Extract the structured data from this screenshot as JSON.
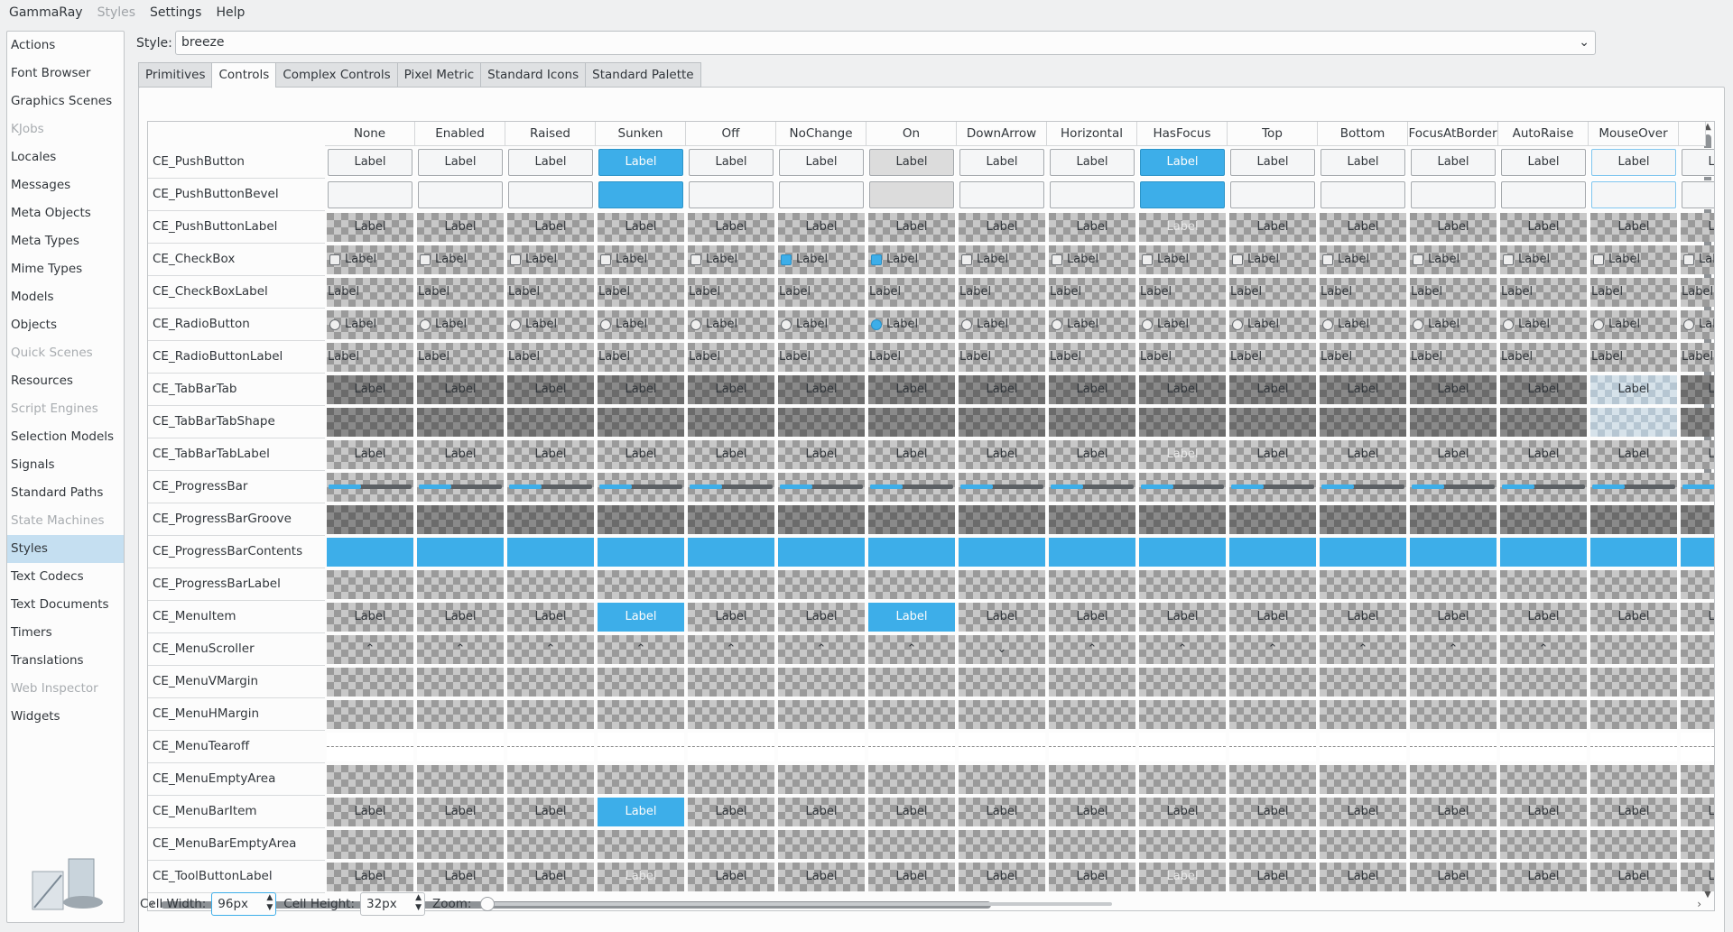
{
  "menubar": {
    "items": [
      {
        "label": "GammaRay",
        "disabled": false
      },
      {
        "label": "Styles",
        "disabled": true
      },
      {
        "label": "Settings",
        "disabled": false
      },
      {
        "label": "Help",
        "disabled": false
      }
    ]
  },
  "sidebar": {
    "items": [
      {
        "label": "Actions",
        "state": ""
      },
      {
        "label": "Font Browser",
        "state": ""
      },
      {
        "label": "Graphics Scenes",
        "state": ""
      },
      {
        "label": "KJobs",
        "state": "disabled"
      },
      {
        "label": "Locales",
        "state": ""
      },
      {
        "label": "Messages",
        "state": ""
      },
      {
        "label": "Meta Objects",
        "state": ""
      },
      {
        "label": "Meta Types",
        "state": ""
      },
      {
        "label": "Mime Types",
        "state": ""
      },
      {
        "label": "Models",
        "state": ""
      },
      {
        "label": "Objects",
        "state": ""
      },
      {
        "label": "Quick Scenes",
        "state": "disabled"
      },
      {
        "label": "Resources",
        "state": ""
      },
      {
        "label": "Script Engines",
        "state": "disabled"
      },
      {
        "label": "Selection Models",
        "state": ""
      },
      {
        "label": "Signals",
        "state": ""
      },
      {
        "label": "Standard Paths",
        "state": ""
      },
      {
        "label": "State Machines",
        "state": "disabled"
      },
      {
        "label": "Styles",
        "state": "selected"
      },
      {
        "label": "Text Codecs",
        "state": ""
      },
      {
        "label": "Text Documents",
        "state": ""
      },
      {
        "label": "Timers",
        "state": ""
      },
      {
        "label": "Translations",
        "state": ""
      },
      {
        "label": "Web Inspector",
        "state": "disabled"
      },
      {
        "label": "Widgets",
        "state": ""
      }
    ]
  },
  "style_selector": {
    "label": "Style:",
    "value": "breeze"
  },
  "tabs": [
    {
      "label": "Primitives",
      "active": false
    },
    {
      "label": "Controls",
      "active": true
    },
    {
      "label": "Complex Controls",
      "active": false
    },
    {
      "label": "Pixel Metric",
      "active": false
    },
    {
      "label": "Standard Icons",
      "active": false
    },
    {
      "label": "Standard Palette",
      "active": false
    }
  ],
  "grid": {
    "columns": [
      "None",
      "Enabled",
      "Raised",
      "Sunken",
      "Off",
      "NoChange",
      "On",
      "DownArrow",
      "Horizontal",
      "HasFocus",
      "Top",
      "Bottom",
      "FocusAtBorder",
      "AutoRaise",
      "MouseOver"
    ],
    "rows": [
      {
        "name": "CE_PushButton",
        "kind": "pushbutton"
      },
      {
        "name": "CE_PushButtonBevel",
        "kind": "bevel"
      },
      {
        "name": "CE_PushButtonLabel",
        "kind": "label"
      },
      {
        "name": "CE_CheckBox",
        "kind": "checkbox"
      },
      {
        "name": "CE_CheckBoxLabel",
        "kind": "leftlabel"
      },
      {
        "name": "CE_RadioButton",
        "kind": "radio"
      },
      {
        "name": "CE_RadioButtonLabel",
        "kind": "leftlabel"
      },
      {
        "name": "CE_TabBarTab",
        "kind": "tab"
      },
      {
        "name": "CE_TabBarTabShape",
        "kind": "tabshape"
      },
      {
        "name": "CE_TabBarTabLabel",
        "kind": "label"
      },
      {
        "name": "CE_ProgressBar",
        "kind": "progress"
      },
      {
        "name": "CE_ProgressBarGroove",
        "kind": "groove"
      },
      {
        "name": "CE_ProgressBarContents",
        "kind": "contents"
      },
      {
        "name": "CE_ProgressBarLabel",
        "kind": "empty"
      },
      {
        "name": "CE_MenuItem",
        "kind": "menuitem"
      },
      {
        "name": "CE_MenuScroller",
        "kind": "scroller"
      },
      {
        "name": "CE_MenuVMargin",
        "kind": "empty"
      },
      {
        "name": "CE_MenuHMargin",
        "kind": "empty"
      },
      {
        "name": "CE_MenuTearoff",
        "kind": "tearoff"
      },
      {
        "name": "CE_MenuEmptyArea",
        "kind": "empty"
      },
      {
        "name": "CE_MenuBarItem",
        "kind": "menubaritem"
      },
      {
        "name": "CE_MenuBarEmptyArea",
        "kind": "empty"
      },
      {
        "name": "CE_ToolButtonLabel",
        "kind": "toolbutton"
      }
    ],
    "cell_text": "Label",
    "scroller_up": "⌃",
    "scroller_down": "⌄"
  },
  "controls": {
    "cell_width_label": "Cell Width:",
    "cell_width_value": "96px",
    "cell_height_label": "Cell Height:",
    "cell_height_value": "32px",
    "zoom_label": "Zoom:",
    "zoom_level": 0
  },
  "colors": {
    "accent": "#3daee9",
    "selection": "#c5dff1"
  }
}
